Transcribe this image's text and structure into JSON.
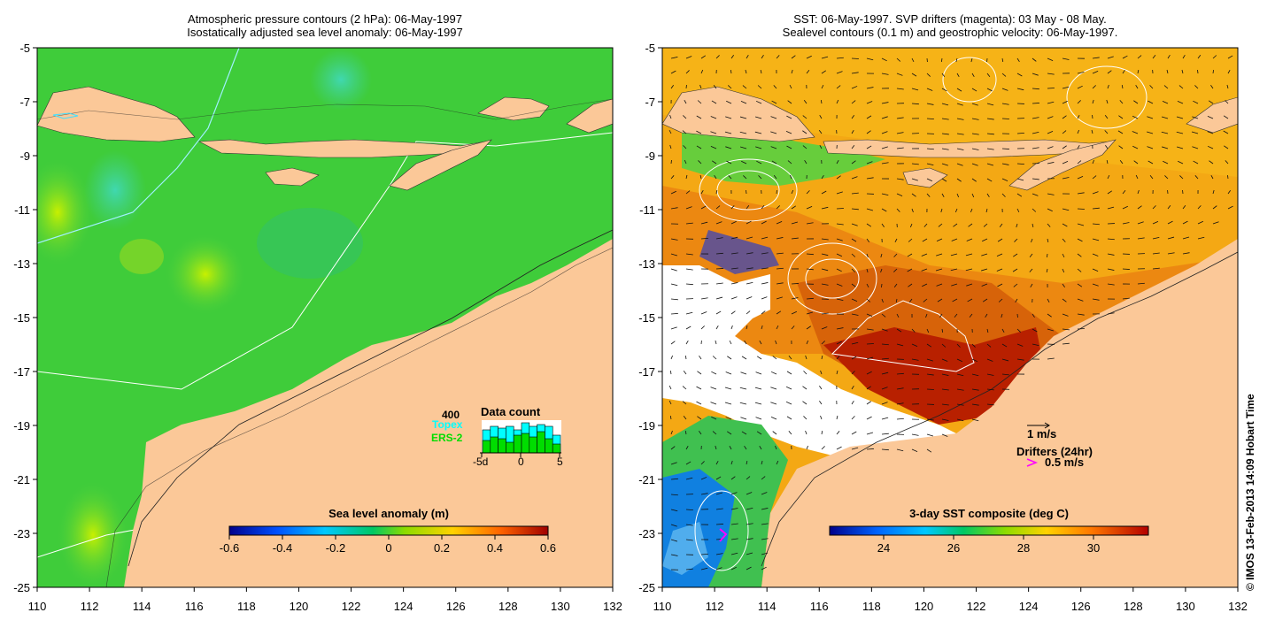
{
  "left_panel": {
    "title_line1": "Atmospheric pressure contours (2 hPa): 06-May-1997",
    "title_line2": "Isostatically adjusted sea level anomaly: 06-May-1997",
    "colorbar": {
      "title": "Sea level anomaly (m)",
      "ticks": [
        "-0.6",
        "-0.4",
        "-0.2",
        "0",
        "0.2",
        "0.4",
        "0.6"
      ]
    },
    "data_count": {
      "title": "Data count",
      "max_label": "400",
      "topex_label": "Topex",
      "ers_label": "ERS-2",
      "x_ticks": [
        "-5d",
        "0",
        "5"
      ],
      "topex_color": "#00ffff",
      "ers_color": "#00dd00"
    }
  },
  "right_panel": {
    "title_line1": "SST: 06-May-1997. SVP drifters (magenta): 03 May - 08 May.",
    "title_line2": "Sealevel contours (0.1 m) and geostrophic velocity: 06-May-1997.",
    "colorbar": {
      "title": "3-day SST composite (deg C)",
      "ticks": [
        "24",
        "26",
        "28",
        "30"
      ]
    },
    "velocity_scale_label": "1 m/s",
    "drifters_label": "Drifters (24hr)",
    "drifters_scale_label": "0.5 m/s",
    "drifter_color": "#ff00ff"
  },
  "axes": {
    "lat_ticks": [
      "-5",
      "-7",
      "-9",
      "-11",
      "-13",
      "-15",
      "-17",
      "-19",
      "-21",
      "-23",
      "-25"
    ],
    "lon_ticks": [
      "110",
      "112",
      "114",
      "116",
      "118",
      "120",
      "122",
      "124",
      "126",
      "128",
      "130",
      "132"
    ]
  },
  "credit": "© IMOS 13-Feb-2013 14:09 Hobart Time",
  "colors": {
    "land": "#fbc898",
    "ocean_sla": "#3ccc3c",
    "sst_warm": "#f08a10",
    "sst_hot": "#b81a00"
  }
}
